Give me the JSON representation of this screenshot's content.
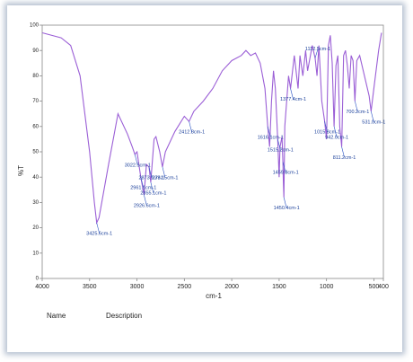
{
  "chart_data": {
    "type": "line",
    "x_label": "cm-1",
    "y_label": "%T",
    "xlim": [
      4000,
      400
    ],
    "ylim": [
      0,
      100
    ],
    "xticks": [
      4000,
      3500,
      3000,
      2500,
      2000,
      1500,
      1000,
      500,
      400
    ],
    "yticks": [
      0,
      10,
      20,
      30,
      40,
      50,
      60,
      70,
      80,
      90,
      100
    ],
    "color": "#9b5fd6",
    "x": [
      4000,
      3800,
      3700,
      3600,
      3500,
      3450,
      3425,
      3400,
      3300,
      3200,
      3100,
      3050,
      3022,
      3000,
      2960,
      2926,
      2900,
      2873,
      2855,
      2820,
      2800,
      2760,
      2731,
      2700,
      2600,
      2500,
      2450,
      2400,
      2300,
      2200,
      2100,
      2000,
      1900,
      1850,
      1800,
      1750,
      1700,
      1650,
      1620,
      1600,
      1580,
      1560,
      1540,
      1515,
      1500,
      1490,
      1470,
      1460,
      1455,
      1450,
      1440,
      1400,
      1380,
      1340,
      1300,
      1280,
      1250,
      1220,
      1200,
      1150,
      1120,
      1100,
      1080,
      1050,
      1020,
      1000,
      980,
      960,
      940,
      920,
      900,
      880,
      860,
      840,
      820,
      800,
      780,
      760,
      740,
      720,
      700,
      680,
      650,
      600,
      550,
      530,
      500,
      450,
      420
    ],
    "values": [
      97,
      95,
      92,
      80,
      50,
      30,
      22,
      24,
      45,
      65,
      57,
      52,
      49,
      50,
      40,
      33,
      45,
      44,
      38,
      55,
      56,
      50,
      44,
      50,
      58,
      64,
      62,
      66,
      70,
      75,
      82,
      86,
      88,
      90,
      88,
      89,
      85,
      75,
      60,
      52,
      70,
      82,
      75,
      55,
      40,
      52,
      56,
      46,
      38,
      32,
      60,
      80,
      75,
      88,
      75,
      88,
      80,
      90,
      82,
      92,
      87,
      80,
      92,
      70,
      62,
      55,
      92,
      96,
      85,
      60,
      84,
      88,
      60,
      52,
      88,
      90,
      84,
      75,
      88,
      86,
      70,
      86,
      88,
      80,
      72,
      66,
      75,
      90,
      97
    ],
    "annotations": [
      {
        "label": "3425.6cm-1",
        "x": 3425,
        "y": 22
      },
      {
        "label": "3022.5cm-1",
        "x": 3022,
        "y": 49
      },
      {
        "label": "2961.1cm-1",
        "x": 2960,
        "y": 40
      },
      {
        "label": "2926.6cm-1",
        "x": 2926,
        "y": 33
      },
      {
        "label": "2855.1cm-1",
        "x": 2855,
        "y": 38
      },
      {
        "label": "2873.1cm-1",
        "x": 2873,
        "y": 44
      },
      {
        "label": "2731.5cm-1",
        "x": 2731,
        "y": 44
      },
      {
        "label": "2412.8cm-1",
        "x": 2450,
        "y": 62
      },
      {
        "label": "1616.1cm-1",
        "x": 1620,
        "y": 60
      },
      {
        "label": "1515.2cm-1",
        "x": 1515,
        "y": 55
      },
      {
        "label": "1459.8cm-1",
        "x": 1460,
        "y": 46
      },
      {
        "label": "1450.4cm-1",
        "x": 1450,
        "y": 32
      },
      {
        "label": "1377.4cm-1",
        "x": 1380,
        "y": 75
      },
      {
        "label": "1112.5cm-1",
        "x": 1120,
        "y": 87
      },
      {
        "label": "1015.8cm-1",
        "x": 1020,
        "y": 62
      },
      {
        "label": "942.0cm-1",
        "x": 920,
        "y": 60
      },
      {
        "label": "811.2cm-1",
        "x": 840,
        "y": 52
      },
      {
        "label": "700.2cm-1",
        "x": 700,
        "y": 70
      },
      {
        "label": "531.0cm-1",
        "x": 530,
        "y": 66
      }
    ]
  },
  "footer": {
    "name": "Name",
    "description": "Description"
  }
}
